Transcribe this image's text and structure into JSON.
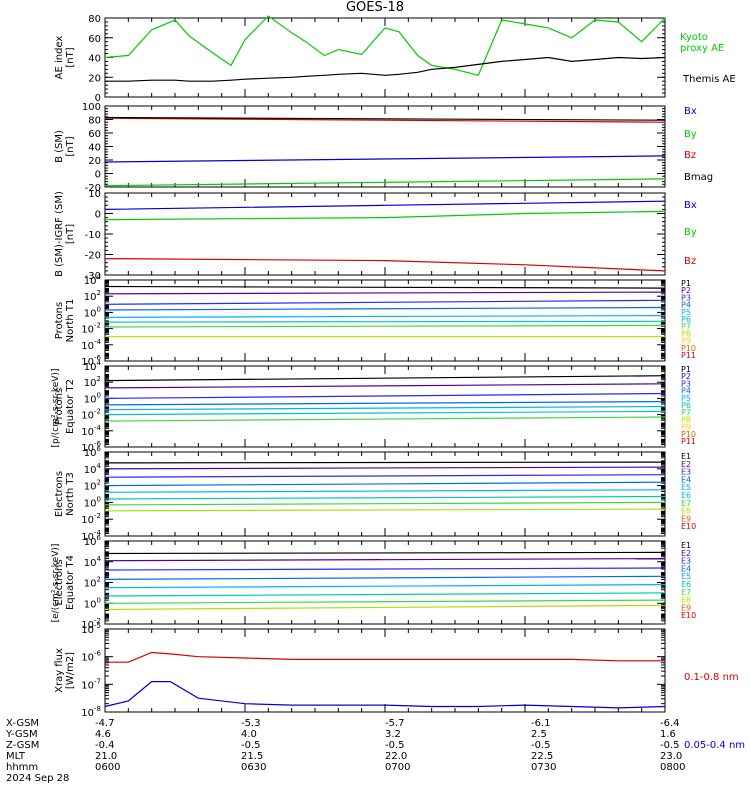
{
  "title": "GOES-18",
  "date": "2024 Sep 28",
  "colors": {
    "black": "#000000",
    "red": "#d40000",
    "green": "#00cc00",
    "blue": "#0000dd",
    "P": [
      "#000000",
      "#5a0090",
      "#2828ff",
      "#0068ff",
      "#00b0ff",
      "#00c8b4",
      "#40d840",
      "#b0e000",
      "#ffd000",
      "#e06000",
      "#e00000"
    ],
    "E": [
      "#000000",
      "#5a0090",
      "#2828ff",
      "#0068ff",
      "#00b0ff",
      "#00c8b4",
      "#40d840",
      "#b0e000",
      "#e06000",
      "#e00000"
    ]
  },
  "orbit": {
    "row_labels": [
      "X-GSM",
      "Y-GSM",
      "Z-GSM",
      "MLT",
      "hhmm"
    ],
    "columns": [
      [
        "-4.7",
        "4.6",
        "-0.4",
        "21.0",
        "0600"
      ],
      [
        "-5.3",
        "4.0",
        "-0.5",
        "21.5",
        "0630"
      ],
      [
        "-5.7",
        "3.2",
        "-0.5",
        "22.0",
        "0700"
      ],
      [
        "-6.1",
        "2.5",
        "-0.5",
        "22.5",
        "0730"
      ],
      [
        "-6.4",
        "1.6",
        "-0.5",
        "23.0",
        "0800"
      ]
    ]
  },
  "chart_data": [
    {
      "type": "line",
      "ylabel": "AE index\n[nT]",
      "ylim": [
        0,
        80
      ],
      "yticks": [
        "0",
        "20",
        "40",
        "60",
        "80"
      ],
      "x": [
        0,
        5,
        10,
        15,
        18,
        23,
        27,
        30,
        35,
        40,
        43,
        47,
        50,
        55,
        60,
        63,
        67,
        70,
        75,
        80,
        85,
        90,
        95,
        100,
        105,
        110,
        115,
        120
      ],
      "series": [
        {
          "name": "Kyoto\nproxy AE",
          "color": "green",
          "values": [
            40,
            42,
            68,
            78,
            62,
            45,
            32,
            58,
            82,
            65,
            56,
            42,
            48,
            43,
            70,
            66,
            42,
            32,
            28,
            22,
            78,
            74,
            70,
            60,
            78,
            76,
            56,
            80
          ]
        },
        {
          "name": "Themis AE",
          "color": "black",
          "values": [
            16,
            16,
            17,
            17,
            16,
            16,
            17,
            18,
            19,
            20,
            21,
            22,
            23,
            24,
            22,
            23,
            25,
            28,
            30,
            33,
            36,
            38,
            40,
            36,
            38,
            40,
            39,
            40
          ]
        }
      ]
    },
    {
      "type": "line",
      "ylabel": "B (SM)\n[nT]",
      "ylim": [
        -20,
        100
      ],
      "yticks": [
        "-20",
        "0",
        "20",
        "40",
        "60",
        "80",
        "100"
      ],
      "x": [
        0,
        120
      ],
      "series": [
        {
          "name": "Bx",
          "color": "blue",
          "values": [
            17,
            26
          ]
        },
        {
          "name": "By",
          "color": "green",
          "values": [
            -18,
            -8
          ]
        },
        {
          "name": "Bz",
          "color": "red",
          "values": [
            82,
            76
          ]
        },
        {
          "name": "Bmag",
          "color": "black",
          "values": [
            83,
            79
          ]
        }
      ]
    },
    {
      "type": "line",
      "ylabel": "B (SM)-IGRF (SM)\n[nT]",
      "ylim": [
        -30,
        10
      ],
      "yticks": [
        "-30",
        "-20",
        "-10",
        "0",
        "10"
      ],
      "x": [
        0,
        60,
        90,
        120
      ],
      "series": [
        {
          "name": "Bx",
          "color": "blue",
          "values": [
            2,
            4,
            5,
            6
          ]
        },
        {
          "name": "By",
          "color": "green",
          "values": [
            -3,
            -2,
            0,
            1
          ]
        },
        {
          "name": "Bz",
          "color": "red",
          "values": [
            -22,
            -23,
            -25,
            -28
          ]
        }
      ]
    },
    {
      "type": "line",
      "ylabel": "Protons\nNorth T1",
      "ylim": [
        -6,
        4
      ],
      "yticks": [
        "10^4",
        "10^2",
        "10^0",
        "10^-2",
        "10^-4",
        "10^-6"
      ],
      "x": [
        0,
        120
      ],
      "series": [
        {
          "name": "P1",
          "values": [
            3.2,
            3.0
          ]
        },
        {
          "name": "P2",
          "values": [
            2.3,
            2.5
          ]
        },
        {
          "name": "P3",
          "values": [
            1.0,
            1.5
          ]
        },
        {
          "name": "P4",
          "values": [
            0.3,
            0.6
          ]
        },
        {
          "name": "P5",
          "values": [
            -0.6,
            -0.4
          ]
        },
        {
          "name": "P6",
          "values": [
            -1.2,
            -1.1
          ]
        },
        {
          "name": "P7",
          "values": [
            -1.8,
            -1.6
          ]
        },
        {
          "name": "P8",
          "values": [
            -3.0,
            -3.0
          ]
        }
      ]
    },
    {
      "type": "line",
      "ylabel": "Protons\nEquator T2",
      "ylim": [
        -6,
        4
      ],
      "yticks": [
        "10^4",
        "10^2",
        "10^0",
        "10^-2",
        "10^-4",
        "10^-6"
      ],
      "x": [
        0,
        120
      ],
      "series": [
        {
          "name": "P1",
          "values": [
            2.2,
            2.8
          ]
        },
        {
          "name": "P2",
          "values": [
            1.3,
            1.8
          ]
        },
        {
          "name": "P3",
          "values": [
            0.0,
            0.6
          ]
        },
        {
          "name": "P4",
          "values": [
            -0.8,
            -0.4
          ]
        },
        {
          "name": "P5",
          "values": [
            -1.4,
            -1.0
          ]
        },
        {
          "name": "P6",
          "values": [
            -2.0,
            -1.6
          ]
        },
        {
          "name": "P7",
          "values": [
            -2.8,
            -2.3
          ]
        }
      ]
    },
    {
      "type": "line",
      "ylabel": "Electrons\nNorth T3",
      "ylim": [
        -4,
        6
      ],
      "yticks": [
        "10^6",
        "10^4",
        "10^2",
        "10^0",
        "10^-2",
        "10^-4"
      ],
      "x": [
        0,
        120
      ],
      "series": [
        {
          "name": "E1",
          "values": [
            4.7,
            4.8
          ]
        },
        {
          "name": "E2",
          "values": [
            4.0,
            4.2
          ]
        },
        {
          "name": "E3",
          "values": [
            3.0,
            3.3
          ]
        },
        {
          "name": "E4",
          "values": [
            2.0,
            2.4
          ]
        },
        {
          "name": "E5",
          "values": [
            1.2,
            1.5
          ]
        },
        {
          "name": "E6",
          "values": [
            0.4,
            0.7
          ]
        },
        {
          "name": "E7",
          "values": [
            -0.3,
            0.0
          ]
        },
        {
          "name": "E8",
          "values": [
            -1.0,
            -0.8
          ]
        }
      ]
    },
    {
      "type": "line",
      "ylabel": "Electrons\nEquator T4",
      "ylim": [
        -2,
        6
      ],
      "yticks": [
        "10^6",
        "10^4",
        "10^2",
        "10^0",
        "10^-2"
      ],
      "x": [
        0,
        120
      ],
      "series": [
        {
          "name": "E1",
          "values": [
            4.8,
            4.9
          ]
        },
        {
          "name": "E2",
          "values": [
            4.1,
            4.3
          ]
        },
        {
          "name": "E3",
          "values": [
            3.2,
            3.4
          ]
        },
        {
          "name": "E4",
          "values": [
            2.3,
            2.6
          ]
        },
        {
          "name": "E5",
          "values": [
            1.5,
            1.8
          ]
        },
        {
          "name": "E6",
          "values": [
            0.7,
            1.0
          ]
        },
        {
          "name": "E7",
          "values": [
            0.0,
            0.3
          ]
        },
        {
          "name": "E8",
          "values": [
            -0.6,
            -0.2
          ]
        }
      ]
    },
    {
      "type": "line",
      "ylabel": "Xray flux\n[W/m2]",
      "ylim": [
        -8,
        -5
      ],
      "yticks": [
        "10^-5",
        "10^-6",
        "10^-7",
        "10^-8"
      ],
      "x": [
        0,
        5,
        10,
        14,
        20,
        30,
        40,
        50,
        60,
        70,
        80,
        90,
        100,
        110,
        120
      ],
      "series": [
        {
          "name": "0.1-0.8 nm",
          "color": "red",
          "values": [
            -6.2,
            -6.2,
            -5.85,
            -5.9,
            -6.0,
            -6.05,
            -6.1,
            -6.1,
            -6.1,
            -6.1,
            -6.1,
            -6.1,
            -6.1,
            -6.15,
            -6.15
          ]
        },
        {
          "name": "0.05-0.4 nm",
          "color": "blue",
          "values": [
            -7.8,
            -7.6,
            -6.9,
            -6.9,
            -7.5,
            -7.7,
            -7.75,
            -7.75,
            -7.75,
            -7.8,
            -7.8,
            -7.75,
            -7.8,
            -7.85,
            -7.8
          ]
        }
      ]
    }
  ],
  "units": {
    "p_axis": "[p/(cm²-s-sr-keV)]",
    "e_axis": "[e/(cm²-s-sr-keV)]"
  },
  "legend_labels": {
    "P": [
      "P1",
      "P2",
      "P3",
      "P4",
      "P5",
      "P6",
      "P7",
      "P8",
      "P9",
      "P10",
      "P11"
    ],
    "E": [
      "E1",
      "E2",
      "E3",
      "E4",
      "E5",
      "E6",
      "E7",
      "E8",
      "E9",
      "E10"
    ]
  }
}
